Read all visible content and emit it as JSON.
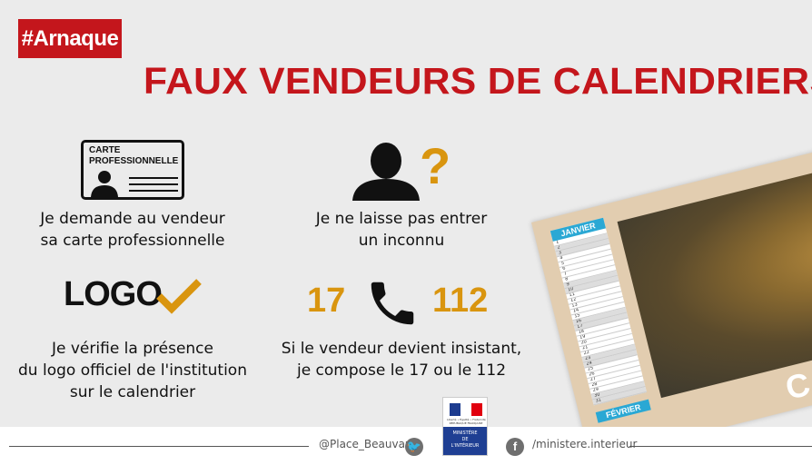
{
  "tag": "#Arnaque",
  "title": "FAUX VENDEURS DE CALENDRIERS",
  "tips": [
    {
      "icon": "professional-card-icon",
      "card_title": "CARTE\nPROFESSIONNELLE",
      "line1": "Je demande au vendeur",
      "line2": "sa carte professionnelle"
    },
    {
      "icon": "unknown-person-icon",
      "mark": "?",
      "line1": "Je ne laisse pas entrer",
      "line2": "un inconnu"
    },
    {
      "icon": "logo-check-icon",
      "word": "LOGO",
      "line1": "Je vérifie la présence",
      "line2": "du logo officiel de l'institution",
      "line3": "sur le calendrier"
    },
    {
      "icon": "phone-icon",
      "num_left": "17",
      "num_right": "112",
      "line1": "Si le vendeur devient insistant,",
      "line2": "je compose le 17 ou le 112"
    }
  ],
  "calendar": {
    "month1": "JANVIER",
    "month2": "FÉVRIER",
    "word": "CALEN",
    "days": [
      1,
      2,
      3,
      4,
      5,
      6,
      7,
      8,
      9,
      10,
      11,
      12,
      13,
      14,
      15,
      16,
      17,
      18,
      19,
      20,
      21,
      22,
      23,
      24,
      25,
      26,
      27,
      28,
      29,
      30,
      31
    ]
  },
  "footer": {
    "twitter": "@Place_Beauvau",
    "facebook": "/ministere.interieur",
    "ministry": "MINISTÈRE\nDE\nL'INTÉRIEUR",
    "republic": "Liberté • Égalité • Fraternité\nRÉPUBLIQUE FRANÇAISE"
  },
  "colors": {
    "red": "#c4161c",
    "gold": "#d9950f",
    "background": "#ebebeb"
  }
}
